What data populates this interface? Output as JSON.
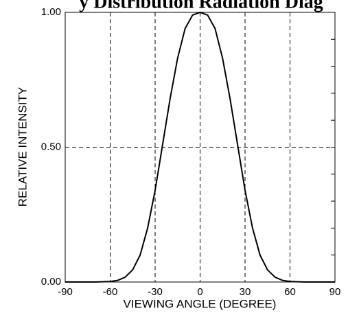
{
  "chart_data": {
    "type": "line",
    "title": "y Distribution Radiation Diag",
    "xlabel": "VIEWING ANGLE (DEGREE)",
    "ylabel": "RELATIVE INTENSITY",
    "xlim": [
      -90,
      90
    ],
    "ylim": [
      0,
      1
    ],
    "x_ticks": [
      -90,
      -60,
      -30,
      0,
      30,
      60,
      90
    ],
    "x_tick_labels": [
      "-90",
      "-60",
      "-30",
      "0",
      "30",
      "60",
      "90"
    ],
    "y_ticks": [
      0,
      0.5,
      1
    ],
    "y_tick_labels": [
      "0.00",
      "0.50",
      "1.00"
    ],
    "y_minor_ticks": [
      0.1,
      0.2,
      0.3,
      0.4,
      0.6,
      0.7,
      0.8,
      0.9
    ],
    "grid": "dashed at major ticks",
    "line_color": "#000000",
    "series": [
      {
        "x": [
          -90,
          -70,
          -60,
          -55,
          -50,
          -45,
          -40,
          -35,
          -30,
          -25,
          -20,
          -15,
          -10,
          -5,
          0,
          5,
          10,
          15,
          20,
          25,
          30,
          35,
          40,
          45,
          50,
          55,
          60,
          70,
          90
        ],
        "y": [
          0,
          0,
          0.002,
          0.006,
          0.018,
          0.045,
          0.1,
          0.2,
          0.34,
          0.51,
          0.68,
          0.83,
          0.94,
          0.99,
          1.0,
          0.99,
          0.94,
          0.83,
          0.68,
          0.51,
          0.34,
          0.2,
          0.1,
          0.045,
          0.018,
          0.006,
          0.002,
          0,
          0
        ]
      }
    ]
  }
}
